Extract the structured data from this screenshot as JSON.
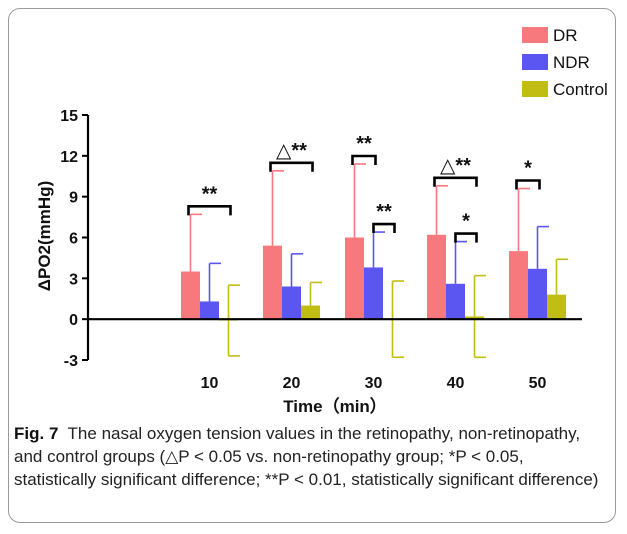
{
  "figure": {
    "caption_label": "Fig. 7",
    "caption_text": "The nasal oxygen tension values in the retinopathy, non-retinopathy, and control groups (△P < 0.05 vs. non-retinopathy group; *P < 0.05, statistically significant difference; **P < 0.01, statistically significant difference)"
  },
  "chart_data": {
    "type": "bar",
    "title": "",
    "xlabel": "Time（min）",
    "ylabel": "ΔPO2(mmHg)",
    "ylim": [
      -3,
      15
    ],
    "yticks": [
      -3,
      0,
      3,
      6,
      9,
      12,
      15
    ],
    "categories": [
      "10",
      "20",
      "30",
      "40",
      "50"
    ],
    "grid": false,
    "legend_position": "top-right",
    "series": [
      {
        "name": "DR",
        "color": "#f7797d",
        "values": [
          3.5,
          5.4,
          6.0,
          6.2,
          5.0
        ],
        "errors": [
          4.2,
          5.5,
          5.4,
          3.6,
          4.6
        ]
      },
      {
        "name": "NDR",
        "color": "#5b55f2",
        "values": [
          1.3,
          2.4,
          3.8,
          2.6,
          3.7
        ],
        "errors": [
          2.8,
          2.4,
          2.6,
          3.1,
          3.1
        ]
      },
      {
        "name": "Control",
        "color": "#c1bd12",
        "values": [
          -0.1,
          1.0,
          0.0,
          0.2,
          1.8
        ],
        "errors": [
          2.6,
          1.7,
          2.8,
          3.0,
          2.6
        ]
      }
    ],
    "annotations": [
      {
        "category": "10",
        "from_series": "DR",
        "to_series": "Control",
        "label": "**"
      },
      {
        "category": "20",
        "from_series": "DR",
        "to_series": "Control",
        "label": "△**"
      },
      {
        "category": "30",
        "from_series": "DR",
        "to_series": "NDR",
        "label": "**"
      },
      {
        "category": "30",
        "from_series": "NDR",
        "to_series": "Control",
        "label": "**"
      },
      {
        "category": "40",
        "from_series": "DR",
        "to_series": "Control",
        "label": "△**"
      },
      {
        "category": "40",
        "from_series": "NDR",
        "to_series": "Control",
        "label": "*"
      },
      {
        "category": "50",
        "from_series": "DR",
        "to_series": "NDR",
        "label": "*"
      }
    ]
  }
}
